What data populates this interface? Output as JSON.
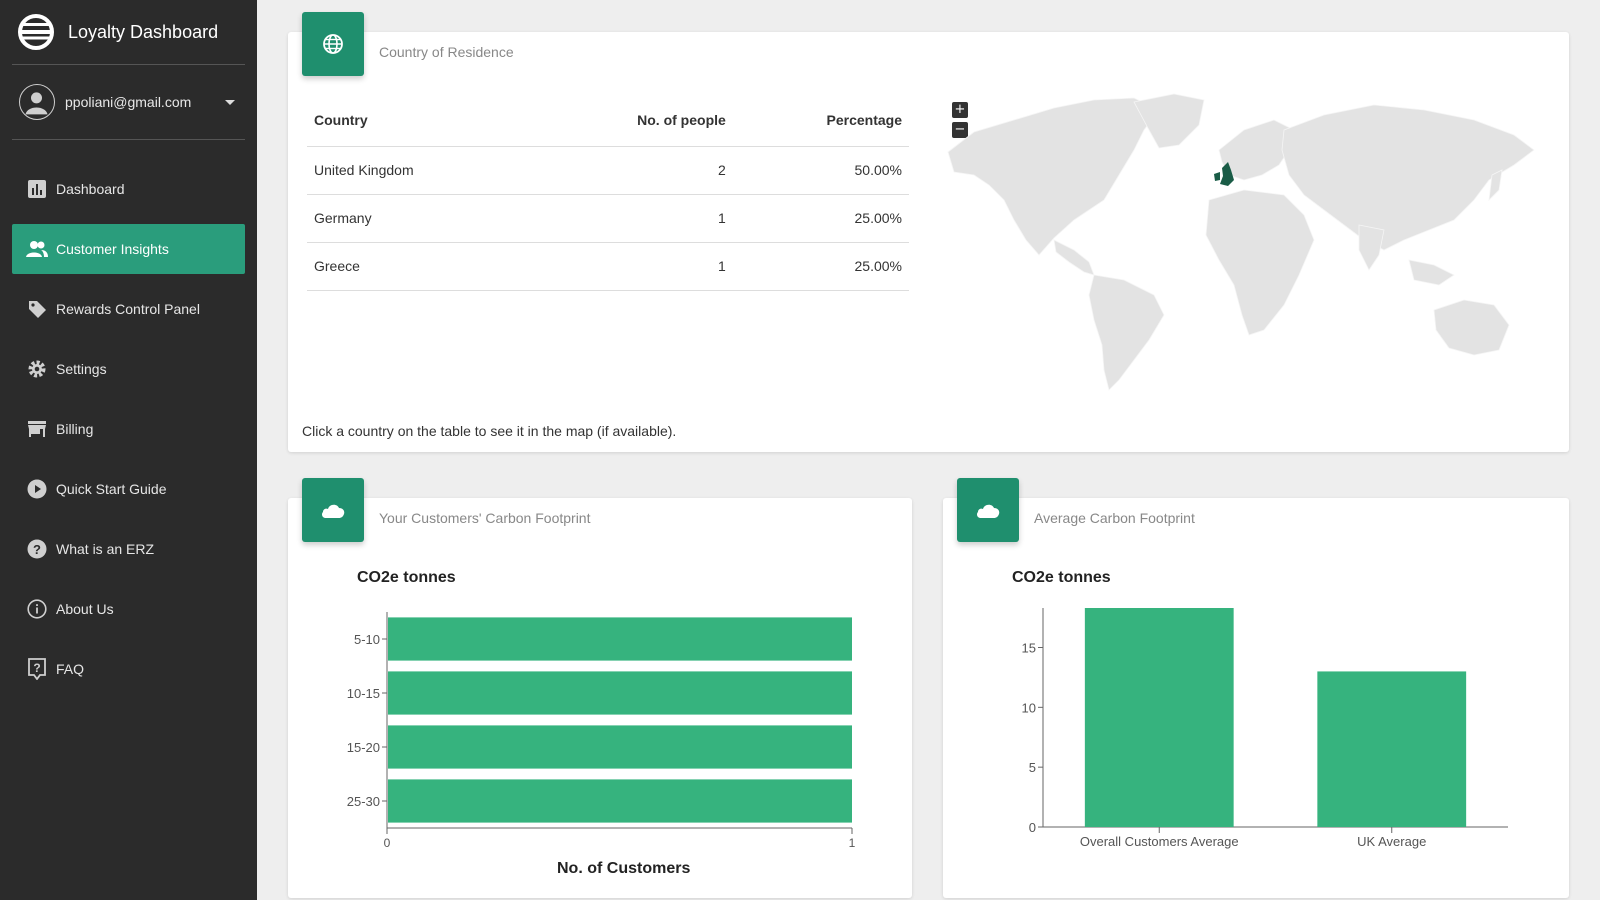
{
  "app": {
    "title": "Loyalty Dashboard"
  },
  "user": {
    "email": "ppoliani@gmail.com"
  },
  "nav": [
    {
      "label": "Dashboard",
      "icon": "bar-chart-icon",
      "active": false
    },
    {
      "label": "Customer Insights",
      "icon": "people-icon",
      "active": true
    },
    {
      "label": "Rewards Control Panel",
      "icon": "tag-icon",
      "active": false
    },
    {
      "label": "Settings",
      "icon": "gear-icon",
      "active": false
    },
    {
      "label": "Billing",
      "icon": "store-icon",
      "active": false
    },
    {
      "label": "Quick Start Guide",
      "icon": "play-circle-icon",
      "active": false
    },
    {
      "label": "What is an ERZ",
      "icon": "help-circle-icon",
      "active": false
    },
    {
      "label": "About Us",
      "icon": "info-icon",
      "active": false
    },
    {
      "label": "FAQ",
      "icon": "help-box-icon",
      "active": false
    }
  ],
  "country_card": {
    "title": "Country of Residence",
    "icon": "globe-icon",
    "columns": [
      "Country",
      "No. of people",
      "Percentage"
    ],
    "rows": [
      {
        "country": "United Kingdom",
        "people": "2",
        "percentage": "50.00%"
      },
      {
        "country": "Germany",
        "people": "1",
        "percentage": "25.00%"
      },
      {
        "country": "Greece",
        "people": "1",
        "percentage": "25.00%"
      }
    ],
    "hint": "Click a country on the table to see it in the map (if available).",
    "map": {
      "zoom_in": "+",
      "zoom_out": "−",
      "highlight_color": "#1a5c47",
      "land_color": "#e3e3e3"
    }
  },
  "footprint_card": {
    "title": "Your Customers' Carbon Footprint",
    "icon": "cloud-icon"
  },
  "average_card": {
    "title": "Average Carbon Footprint",
    "icon": "cloud-icon"
  },
  "colors": {
    "accent": "#2a9d7c",
    "bar": "#36b37e",
    "sidebar": "#2b2b2b"
  },
  "chart_data": [
    {
      "type": "bar",
      "orientation": "horizontal",
      "title": "CO2e tonnes",
      "xlabel": "No. of Customers",
      "ylabel": "",
      "categories": [
        "5-10",
        "10-15",
        "15-20",
        "25-30"
      ],
      "values": [
        1,
        1,
        1,
        1
      ],
      "xlim": [
        0,
        1
      ],
      "xticks": [
        "0",
        "1"
      ],
      "grid": false
    },
    {
      "type": "bar",
      "orientation": "vertical",
      "title": "CO2e tonnes",
      "xlabel": "",
      "ylabel": "",
      "categories": [
        "Overall Customers Average",
        "UK Average"
      ],
      "values": [
        18.3,
        13
      ],
      "ylim": [
        0,
        18.3
      ],
      "yticks": [
        "0",
        "5",
        "10",
        "15"
      ],
      "grid": false
    }
  ]
}
